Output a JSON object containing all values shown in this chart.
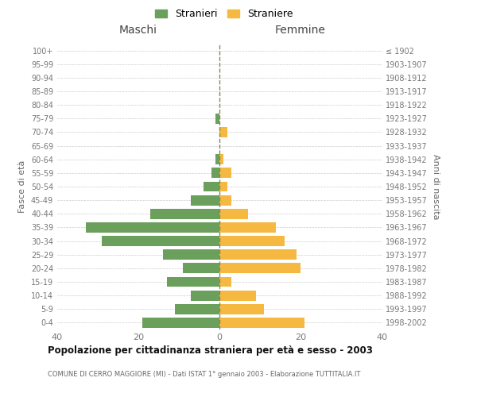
{
  "age_groups": [
    "0-4",
    "5-9",
    "10-14",
    "15-19",
    "20-24",
    "25-29",
    "30-34",
    "35-39",
    "40-44",
    "45-49",
    "50-54",
    "55-59",
    "60-64",
    "65-69",
    "70-74",
    "75-79",
    "80-84",
    "85-89",
    "90-94",
    "95-99",
    "100+"
  ],
  "birth_years": [
    "1998-2002",
    "1993-1997",
    "1988-1992",
    "1983-1987",
    "1978-1982",
    "1973-1977",
    "1968-1972",
    "1963-1967",
    "1958-1962",
    "1953-1957",
    "1948-1952",
    "1943-1947",
    "1938-1942",
    "1933-1937",
    "1928-1932",
    "1923-1927",
    "1918-1922",
    "1913-1917",
    "1908-1912",
    "1903-1907",
    "≤ 1902"
  ],
  "maschi": [
    19,
    11,
    7,
    13,
    9,
    14,
    29,
    33,
    17,
    7,
    4,
    2,
    1,
    0,
    0,
    1,
    0,
    0,
    0,
    0,
    0
  ],
  "femmine": [
    21,
    11,
    9,
    3,
    20,
    19,
    16,
    14,
    7,
    3,
    2,
    3,
    1,
    0,
    2,
    0,
    0,
    0,
    0,
    0,
    0
  ],
  "maschi_color": "#6a9f5c",
  "femmine_color": "#f5b942",
  "grid_color": "#cccccc",
  "center_line_color": "#888855",
  "title": "Popolazione per cittadinanza straniera per età e sesso - 2003",
  "subtitle": "COMUNE DI CERRO MAGGIORE (MI) - Dati ISTAT 1° gennaio 2003 - Elaborazione TUTTITALIA.IT",
  "ylabel_left": "Fasce di età",
  "ylabel_right": "Anni di nascita",
  "xlabel_left": "Maschi",
  "xlabel_right": "Femmine",
  "legend_maschi": "Stranieri",
  "legend_femmine": "Straniere",
  "xlim": 40,
  "background_color": "#ffffff"
}
